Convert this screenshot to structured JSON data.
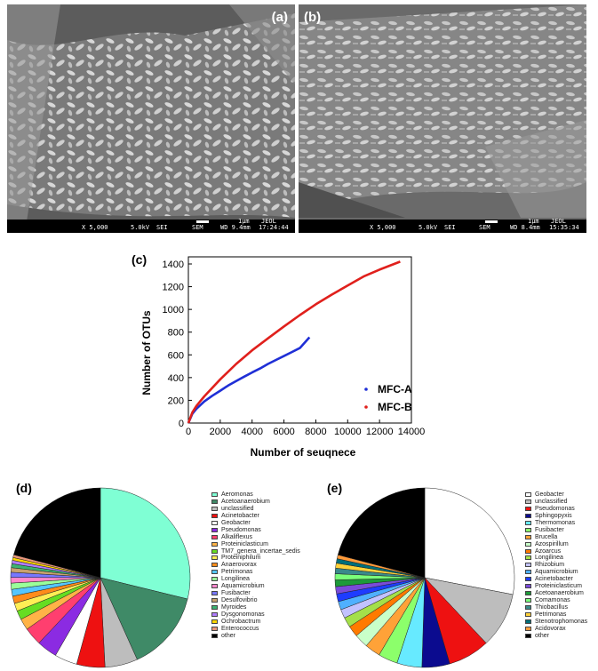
{
  "panels": {
    "a": {
      "letter": "(a)",
      "bar": {
        "mag": "X 5,000",
        "kv": "5.0kV",
        "mode": "SEI",
        "src": "SEM",
        "scale": "1μm",
        "brand": "JEOL",
        "wd": "WD 9.4mm",
        "time": "17:24:44"
      }
    },
    "b": {
      "letter": "(b)",
      "bar": {
        "mag": "X 5,000",
        "kv": "5.0kV",
        "mode": "SEI",
        "src": "SEM",
        "scale": "1μm",
        "brand": "JEOL",
        "wd": "WD 8.4mm",
        "time": "15:35:34"
      }
    },
    "c": {
      "letter": "(c)"
    },
    "d": {
      "letter": "(d)"
    },
    "e": {
      "letter": "(e)"
    }
  },
  "chart_data": [
    {
      "id": "c",
      "type": "line",
      "xlabel": "Number of seuqnece",
      "ylabel": "Number of OTUs",
      "xlim": [
        0,
        14000
      ],
      "ylim": [
        0,
        1400
      ],
      "xticks": [
        0,
        2000,
        4000,
        6000,
        8000,
        10000,
        12000,
        14000
      ],
      "yticks": [
        0,
        200,
        400,
        600,
        800,
        1000,
        1200,
        1400
      ],
      "legend_position": "bottom-right",
      "series": [
        {
          "name": "MFC-A",
          "color": "#1f2fd6",
          "x": [
            0,
            250,
            500,
            1000,
            1500,
            2000,
            2500,
            3000,
            3500,
            4000,
            4500,
            5000,
            5500,
            6000,
            6500,
            7000,
            7600
          ],
          "y": [
            0,
            82,
            124,
            190,
            240,
            285,
            330,
            370,
            408,
            445,
            480,
            520,
            555,
            590,
            625,
            660,
            755
          ]
        },
        {
          "name": "MFC-B",
          "color": "#e0201c",
          "x": [
            0,
            250,
            500,
            1000,
            2000,
            3000,
            4000,
            5000,
            6000,
            7000,
            8000,
            9000,
            10000,
            11000,
            12000,
            13300
          ],
          "y": [
            0,
            95,
            150,
            235,
            385,
            520,
            640,
            745,
            850,
            950,
            1045,
            1130,
            1210,
            1290,
            1350,
            1420
          ]
        }
      ]
    },
    {
      "id": "d",
      "type": "pie",
      "labels": [
        "Aeromonas",
        "Acetoanaerobium",
        "unclassified",
        "Acinetobacter",
        "Geobacter",
        "Pseudomonas",
        "Alkaliflexus",
        "Proteiniclasticum",
        "TM7_genera_incertae_sedis",
        "Proteiniphilum",
        "Anaerovorax",
        "Petrimonas",
        "Longilinea",
        "Aquamicrobium",
        "Fusibacter",
        "Desulfovibrio",
        "Myroides",
        "Dysgonomonas",
        "Ochrobactrum",
        "Enterococcus",
        "other"
      ],
      "values": [
        28.3,
        14.2,
        5.8,
        5.0,
        4.0,
        3.6,
        3.2,
        2.0,
        1.6,
        1.4,
        1.3,
        1.2,
        1.1,
        1.0,
        0.9,
        0.8,
        0.7,
        0.6,
        0.5,
        0.5,
        20.5
      ],
      "colors": [
        "#7fffd4",
        "#3f8a67",
        "#bdbdbd",
        "#ee1111",
        "#ffffff",
        "#8b2be2",
        "#ff3f6f",
        "#ffb347",
        "#66dd22",
        "#ffee55",
        "#ff8c1a",
        "#55c6ff",
        "#9aff9a",
        "#ff88cc",
        "#7777ff",
        "#c8a26e",
        "#3cb371",
        "#b07dff",
        "#ffd700",
        "#e9967a",
        "#000000"
      ]
    },
    {
      "id": "e",
      "type": "pie",
      "labels": [
        "Geobacter",
        "unclassified",
        "Pseudomonas",
        "Sphingopyxis",
        "Thermomonas",
        "Fusibacter",
        "Brucella",
        "Azospirillum",
        "Azoarcus",
        "Longilinea",
        "Rhizobium",
        "Aquamicrobium",
        "Acinetobacter",
        "Proteiniclasticum",
        "Acetoanaerobium",
        "Comamonas",
        "Thiobacillus",
        "Petrimonas",
        "Stenotrophomonas",
        "Acidovorax",
        "other"
      ],
      "values": [
        28.0,
        10.0,
        7.5,
        5.0,
        4.5,
        3.5,
        2.8,
        2.5,
        2.0,
        1.8,
        1.6,
        1.5,
        1.4,
        1.3,
        1.2,
        1.1,
        1.0,
        0.9,
        0.8,
        0.7,
        20.9
      ],
      "colors": [
        "#ffffff",
        "#bdbdbd",
        "#ee1111",
        "#0b0b8f",
        "#67eaff",
        "#8cff6b",
        "#ffa238",
        "#c9ffc9",
        "#ff7a00",
        "#a4e04a",
        "#c2c2ff",
        "#4fb0ff",
        "#1e3cff",
        "#7a4bd8",
        "#1d9a3a",
        "#7aff7a",
        "#3a8a8a",
        "#ffd23a",
        "#006f7a",
        "#ff9a3a",
        "#000000"
      ]
    }
  ]
}
